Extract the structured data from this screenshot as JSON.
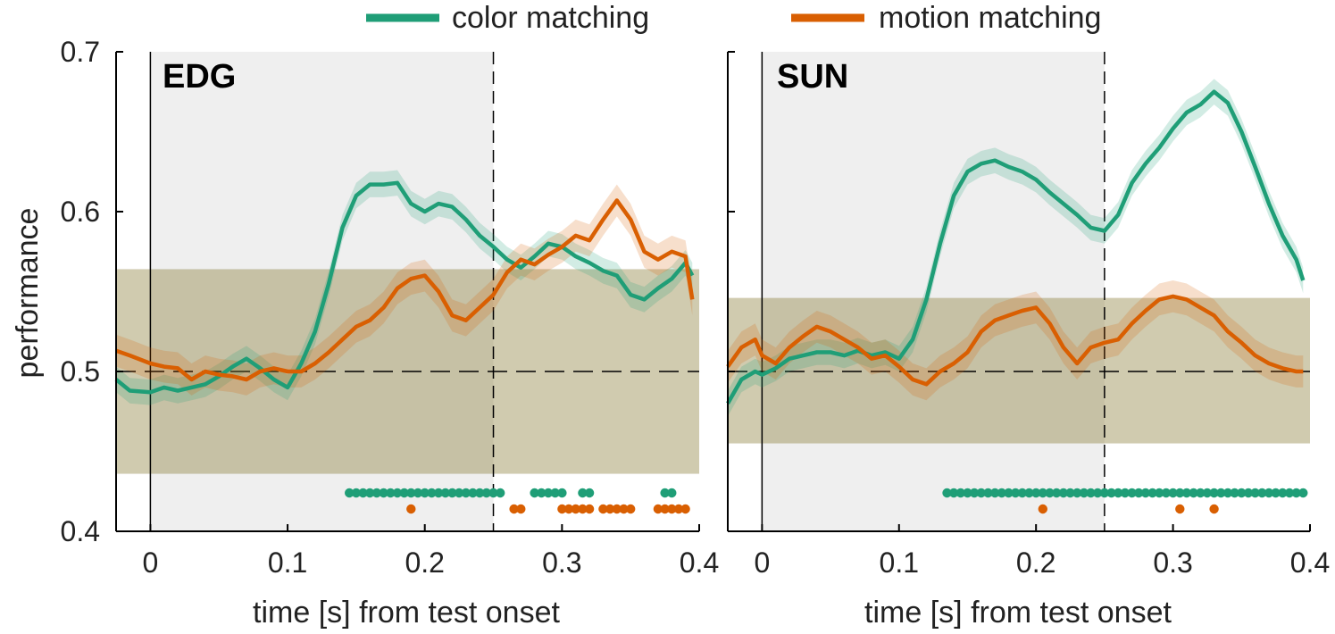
{
  "legend": [
    {
      "label": "color matching",
      "color": "#1f9e77"
    },
    {
      "label": "motion matching",
      "color": "#d95f02"
    }
  ],
  "chart_data": [
    {
      "type": "line",
      "title": "EDG",
      "xlabel": "time [s] from test onset",
      "ylabel": "performance",
      "xlim": [
        -0.025,
        0.4
      ],
      "ylim": [
        0.4,
        0.7
      ],
      "xticks": [
        "0",
        "0.1",
        "0.2",
        "0.3",
        "0.4"
      ],
      "yticks": [
        "0.4",
        "0.5",
        "0.6",
        "0.7"
      ],
      "chance_level": 0.5,
      "shaded_interval": [
        0,
        0.25
      ],
      "marker_line": 0.25,
      "null_band": {
        "low": 0.436,
        "high": 0.564
      },
      "series": [
        {
          "name": "color matching",
          "color": "#1f9e77",
          "x": [
            -0.025,
            -0.015,
            0.0,
            0.01,
            0.02,
            0.03,
            0.04,
            0.05,
            0.06,
            0.07,
            0.08,
            0.09,
            0.1,
            0.11,
            0.12,
            0.13,
            0.14,
            0.15,
            0.16,
            0.17,
            0.18,
            0.19,
            0.2,
            0.21,
            0.22,
            0.23,
            0.24,
            0.25,
            0.26,
            0.27,
            0.28,
            0.29,
            0.3,
            0.31,
            0.32,
            0.33,
            0.34,
            0.35,
            0.36,
            0.37,
            0.38,
            0.39,
            0.395
          ],
          "values": [
            0.495,
            0.488,
            0.487,
            0.49,
            0.488,
            0.49,
            0.492,
            0.497,
            0.503,
            0.508,
            0.502,
            0.495,
            0.49,
            0.505,
            0.525,
            0.555,
            0.59,
            0.61,
            0.617,
            0.617,
            0.618,
            0.605,
            0.6,
            0.605,
            0.603,
            0.595,
            0.585,
            0.578,
            0.57,
            0.565,
            0.572,
            0.58,
            0.578,
            0.572,
            0.568,
            0.563,
            0.56,
            0.548,
            0.545,
            0.552,
            0.558,
            0.568,
            0.56
          ],
          "band": 0.008,
          "significant_x": [
            0.145,
            0.15,
            0.155,
            0.16,
            0.165,
            0.17,
            0.175,
            0.18,
            0.185,
            0.19,
            0.195,
            0.2,
            0.205,
            0.21,
            0.215,
            0.22,
            0.225,
            0.23,
            0.235,
            0.24,
            0.245,
            0.25,
            0.255,
            0.28,
            0.285,
            0.29,
            0.295,
            0.3,
            0.315,
            0.32,
            0.375,
            0.38
          ]
        },
        {
          "name": "motion matching",
          "color": "#d95f02",
          "x": [
            -0.025,
            -0.015,
            0.0,
            0.01,
            0.02,
            0.03,
            0.04,
            0.05,
            0.06,
            0.07,
            0.08,
            0.09,
            0.1,
            0.11,
            0.12,
            0.13,
            0.14,
            0.15,
            0.16,
            0.17,
            0.18,
            0.19,
            0.2,
            0.21,
            0.22,
            0.23,
            0.24,
            0.25,
            0.26,
            0.27,
            0.28,
            0.29,
            0.3,
            0.31,
            0.32,
            0.33,
            0.34,
            0.35,
            0.36,
            0.37,
            0.38,
            0.39,
            0.395
          ],
          "values": [
            0.513,
            0.51,
            0.505,
            0.503,
            0.502,
            0.495,
            0.5,
            0.498,
            0.497,
            0.495,
            0.5,
            0.502,
            0.5,
            0.5,
            0.505,
            0.512,
            0.52,
            0.528,
            0.532,
            0.54,
            0.552,
            0.558,
            0.56,
            0.55,
            0.535,
            0.532,
            0.54,
            0.548,
            0.562,
            0.57,
            0.567,
            0.573,
            0.578,
            0.585,
            0.582,
            0.595,
            0.607,
            0.595,
            0.575,
            0.57,
            0.575,
            0.572,
            0.545
          ],
          "band": 0.01,
          "significant_x": [
            0.19,
            0.265,
            0.27,
            0.3,
            0.305,
            0.31,
            0.315,
            0.32,
            0.33,
            0.335,
            0.34,
            0.345,
            0.35,
            0.37,
            0.375,
            0.38,
            0.385,
            0.39
          ]
        }
      ]
    },
    {
      "type": "line",
      "title": "SUN",
      "xlabel": "time [s] from test onset",
      "ylabel": "",
      "xlim": [
        -0.025,
        0.4
      ],
      "ylim": [
        0.4,
        0.7
      ],
      "xticks": [
        "0",
        "0.1",
        "0.2",
        "0.3",
        "0.4"
      ],
      "yticks": [],
      "chance_level": 0.5,
      "shaded_interval": [
        0,
        0.25
      ],
      "marker_line": 0.25,
      "null_band": {
        "low": 0.455,
        "high": 0.546
      },
      "series": [
        {
          "name": "color matching",
          "color": "#1f9e77",
          "x": [
            -0.025,
            -0.015,
            -0.005,
            0.0,
            0.01,
            0.02,
            0.03,
            0.04,
            0.05,
            0.06,
            0.07,
            0.08,
            0.09,
            0.1,
            0.11,
            0.12,
            0.13,
            0.14,
            0.15,
            0.16,
            0.17,
            0.18,
            0.19,
            0.2,
            0.21,
            0.22,
            0.23,
            0.24,
            0.25,
            0.26,
            0.27,
            0.28,
            0.29,
            0.3,
            0.31,
            0.32,
            0.33,
            0.34,
            0.35,
            0.36,
            0.37,
            0.38,
            0.39,
            0.395
          ],
          "values": [
            0.48,
            0.495,
            0.5,
            0.498,
            0.502,
            0.508,
            0.51,
            0.512,
            0.512,
            0.51,
            0.513,
            0.51,
            0.512,
            0.508,
            0.52,
            0.545,
            0.58,
            0.61,
            0.625,
            0.63,
            0.632,
            0.628,
            0.625,
            0.62,
            0.612,
            0.605,
            0.598,
            0.59,
            0.588,
            0.598,
            0.618,
            0.63,
            0.64,
            0.652,
            0.662,
            0.667,
            0.675,
            0.668,
            0.65,
            0.628,
            0.605,
            0.585,
            0.57,
            0.557
          ],
          "band": 0.008,
          "significant_x": [
            0.135,
            0.14,
            0.145,
            0.15,
            0.155,
            0.16,
            0.165,
            0.17,
            0.175,
            0.18,
            0.185,
            0.19,
            0.195,
            0.2,
            0.205,
            0.21,
            0.215,
            0.22,
            0.225,
            0.23,
            0.235,
            0.24,
            0.245,
            0.25,
            0.255,
            0.26,
            0.265,
            0.27,
            0.275,
            0.28,
            0.285,
            0.29,
            0.295,
            0.3,
            0.305,
            0.31,
            0.315,
            0.32,
            0.325,
            0.33,
            0.335,
            0.34,
            0.345,
            0.35,
            0.355,
            0.36,
            0.365,
            0.37,
            0.375,
            0.38,
            0.385,
            0.39,
            0.395
          ]
        },
        {
          "name": "motion matching",
          "color": "#d95f02",
          "x": [
            -0.025,
            -0.015,
            -0.005,
            0.0,
            0.01,
            0.02,
            0.03,
            0.04,
            0.05,
            0.06,
            0.07,
            0.08,
            0.09,
            0.1,
            0.11,
            0.12,
            0.13,
            0.14,
            0.15,
            0.16,
            0.17,
            0.18,
            0.19,
            0.2,
            0.21,
            0.22,
            0.23,
            0.24,
            0.25,
            0.26,
            0.27,
            0.28,
            0.29,
            0.3,
            0.31,
            0.32,
            0.33,
            0.34,
            0.35,
            0.36,
            0.37,
            0.38,
            0.39,
            0.395
          ],
          "values": [
            0.503,
            0.515,
            0.52,
            0.51,
            0.505,
            0.515,
            0.522,
            0.528,
            0.525,
            0.52,
            0.515,
            0.508,
            0.51,
            0.503,
            0.495,
            0.492,
            0.5,
            0.505,
            0.512,
            0.525,
            0.532,
            0.535,
            0.538,
            0.54,
            0.53,
            0.515,
            0.505,
            0.515,
            0.518,
            0.52,
            0.53,
            0.538,
            0.545,
            0.547,
            0.545,
            0.54,
            0.535,
            0.525,
            0.518,
            0.51,
            0.505,
            0.502,
            0.5,
            0.5
          ],
          "band": 0.01,
          "significant_x": [
            0.205,
            0.305,
            0.33
          ]
        }
      ]
    }
  ]
}
